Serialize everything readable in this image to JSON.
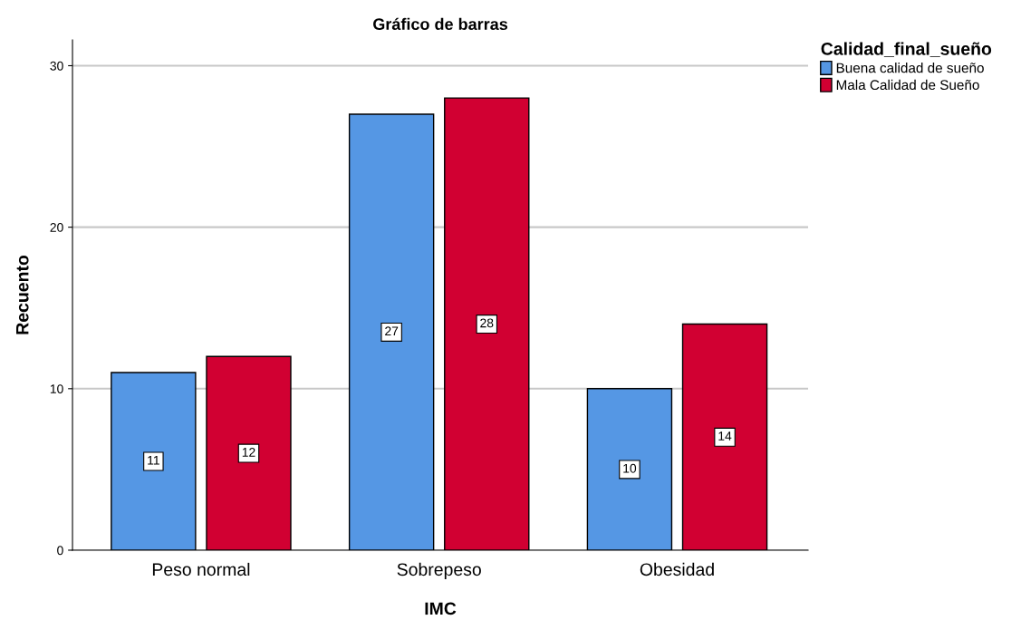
{
  "chart_data": {
    "type": "bar",
    "title": "Gráfico de barras",
    "xlabel": "IMC",
    "ylabel": "Recuento",
    "legend_title": "Calidad_final_sueño",
    "categories": [
      "Peso normal",
      "Sobrepeso",
      "Obesidad"
    ],
    "series": [
      {
        "name": "Buena calidad de sueño",
        "color": "#5597e4",
        "values": [
          11,
          27,
          10
        ]
      },
      {
        "name": "Mala Calidad de Sueño",
        "color": "#d10032",
        "values": [
          12,
          28,
          14
        ]
      }
    ],
    "ylim": [
      0,
      31.6
    ],
    "yticks": [
      0,
      10,
      20,
      30
    ],
    "grid": "y",
    "legend": "top right",
    "data_labels": true
  }
}
